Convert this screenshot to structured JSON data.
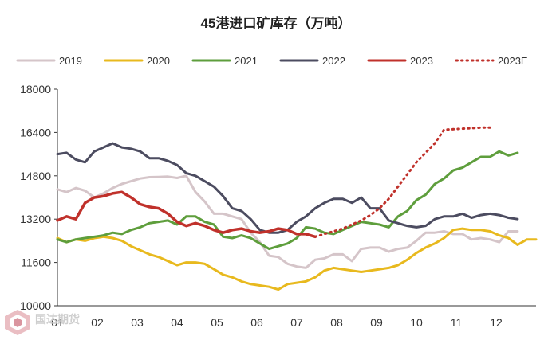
{
  "chart_data": {
    "type": "line",
    "title": "45港进口矿库存（万吨）",
    "ylim": [
      10000,
      18000
    ],
    "yticks": [
      10000,
      11600,
      13200,
      14800,
      16400,
      18000
    ],
    "ytick_labels": [
      "10000",
      "11600",
      "13200",
      "14800",
      "16400",
      "18000"
    ],
    "xlim": [
      0,
      52
    ],
    "month_labels": [
      "01",
      "02",
      "03",
      "04",
      "05",
      "06",
      "07",
      "08",
      "09",
      "10",
      "11",
      "12"
    ],
    "series": [
      {
        "name": "2019",
        "color": "#d5c5c9",
        "style": "solid",
        "values": [
          14300,
          14200,
          14350,
          14250,
          14000,
          14150,
          14350,
          14500,
          14600,
          14700,
          14750,
          14760,
          14770,
          14720,
          14800,
          14200,
          13850,
          13400,
          13400,
          13300,
          13200,
          12700,
          12350,
          11850,
          11800,
          11550,
          11450,
          11400,
          11700,
          11750,
          11900,
          11900,
          11650,
          12100,
          12150,
          12150,
          12000,
          12100,
          12150,
          12400,
          12700,
          12700,
          12750,
          12650,
          12650,
          12450,
          12500,
          12450,
          12350,
          12750,
          12750
        ]
      },
      {
        "name": "2020",
        "color": "#e8b91e",
        "style": "solid",
        "values": [
          12500,
          12350,
          12450,
          12400,
          12500,
          12550,
          12500,
          12400,
          12200,
          12050,
          11900,
          11800,
          11650,
          11500,
          11600,
          11600,
          11550,
          11350,
          11150,
          11050,
          10900,
          10800,
          10750,
          10700,
          10600,
          10800,
          10850,
          10900,
          11050,
          11300,
          11400,
          11350,
          11300,
          11250,
          11300,
          11350,
          11400,
          11500,
          11700,
          11950,
          12150,
          12300,
          12500,
          12800,
          12850,
          12800,
          12800,
          12750,
          12600,
          12500,
          12250,
          12450,
          12450
        ]
      },
      {
        "name": "2021",
        "color": "#5e9e3c",
        "style": "solid",
        "values": [
          12450,
          12350,
          12450,
          12500,
          12550,
          12600,
          12700,
          12650,
          12800,
          12900,
          13050,
          13100,
          13150,
          13000,
          13300,
          13300,
          13100,
          13000,
          12550,
          12500,
          12600,
          12500,
          12300,
          12100,
          12200,
          12300,
          12500,
          12900,
          12850,
          12700,
          12650,
          12800,
          12950,
          13100,
          13050,
          13000,
          12900,
          13300,
          13500,
          13900,
          14100,
          14500,
          14700,
          15000,
          15100,
          15300,
          15500,
          15500,
          15700,
          15550,
          15650
        ]
      },
      {
        "name": "2022",
        "color": "#4c4c60",
        "style": "solid",
        "values": [
          15600,
          15650,
          15400,
          15300,
          15700,
          15850,
          16000,
          15850,
          15800,
          15700,
          15450,
          15450,
          15350,
          15200,
          14900,
          14800,
          14600,
          14400,
          14050,
          13600,
          13500,
          13200,
          12800,
          12700,
          12700,
          12800,
          13100,
          13300,
          13600,
          13800,
          13950,
          13950,
          13800,
          14000,
          13600,
          13600,
          13150,
          13050,
          12950,
          12900,
          12950,
          13200,
          13300,
          13300,
          13400,
          13250,
          13350,
          13400,
          13350,
          13250,
          13200
        ]
      },
      {
        "name": "2023",
        "color": "#c0312b",
        "style": "solid",
        "values": [
          13150,
          13300,
          13200,
          13800,
          14000,
          14050,
          14150,
          14200,
          14000,
          13750,
          13650,
          13600,
          13400,
          13100,
          12950,
          13050,
          12950,
          12800,
          12700,
          12800,
          12850,
          12750,
          12700,
          12750,
          12850,
          12800,
          12650,
          12650,
          12550
        ]
      },
      {
        "name": "2023E",
        "color": "#c0312b",
        "style": "dotted",
        "start": 28,
        "values": [
          12550,
          12650,
          12750,
          12850,
          13000,
          13150,
          13350,
          13600,
          13950,
          14400,
          14850,
          15300,
          15650,
          16000,
          16500,
          16520,
          16540,
          16560,
          16580,
          16580
        ]
      }
    ]
  }
}
